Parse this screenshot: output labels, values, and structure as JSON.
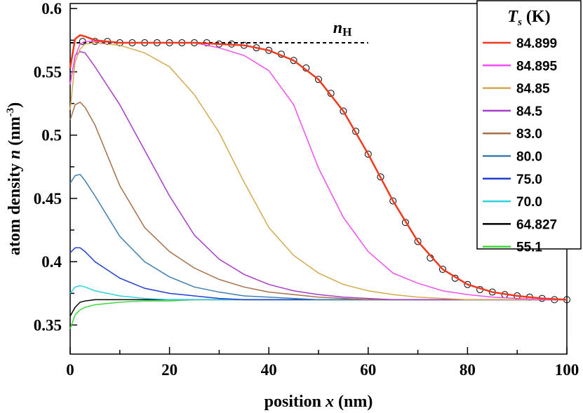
{
  "chart_data": {
    "type": "line",
    "xlabel": [
      "position ",
      "x",
      " (nm)"
    ],
    "ylabel": [
      "atom density ",
      "n",
      " (nm",
      "-3",
      ")"
    ],
    "legend_title": [
      "T",
      "s",
      " (K)"
    ],
    "legend": "upper right",
    "x": [
      0,
      1,
      2,
      3,
      5,
      10,
      15,
      20,
      25,
      30,
      35,
      40,
      45,
      50,
      55,
      60,
      65,
      70,
      75,
      80,
      85,
      90,
      95,
      100
    ],
    "xlim": [
      0,
      100
    ],
    "xticks": [
      0,
      20,
      40,
      60,
      80,
      100
    ],
    "xminorticks": [
      10,
      30,
      50,
      70,
      90
    ],
    "ylim": [
      0.327,
      0.604
    ],
    "yticks": [
      0.35,
      0.4,
      0.45,
      0.5,
      0.55,
      0.6
    ],
    "yminorticks": [
      0.375,
      0.425,
      0.475,
      0.525,
      0.575
    ],
    "series": [
      {
        "name": "84.899",
        "color": "#f03a1e",
        "values": [
          0.553,
          0.576,
          0.579,
          0.578,
          0.575,
          0.573,
          0.573,
          0.573,
          0.573,
          0.572,
          0.571,
          0.567,
          0.559,
          0.544,
          0.519,
          0.485,
          0.448,
          0.416,
          0.394,
          0.382,
          0.376,
          0.373,
          0.371,
          0.37
        ]
      },
      {
        "name": "84.895",
        "color": "#f050f0",
        "values": [
          0.54,
          0.562,
          0.572,
          0.574,
          0.574,
          0.573,
          0.573,
          0.573,
          0.573,
          0.569,
          0.563,
          0.551,
          0.524,
          0.474,
          0.435,
          0.408,
          0.391,
          0.383,
          0.377,
          0.374,
          0.372,
          0.371,
          0.37,
          0.37
        ]
      },
      {
        "name": "84.85",
        "color": "#d4aa50",
        "values": [
          0.52,
          0.558,
          0.568,
          0.572,
          0.573,
          0.571,
          0.565,
          0.554,
          0.532,
          0.502,
          0.463,
          0.427,
          0.405,
          0.391,
          0.382,
          0.377,
          0.374,
          0.372,
          0.371,
          0.37,
          0.37,
          0.37,
          0.37,
          0.37
        ]
      },
      {
        "name": "84.5",
        "color": "#a63ec8",
        "values": [
          0.54,
          0.563,
          0.566,
          0.565,
          0.554,
          0.524,
          0.488,
          0.452,
          0.421,
          0.402,
          0.39,
          0.382,
          0.377,
          0.374,
          0.372,
          0.371,
          0.37,
          0.37,
          0.37,
          0.37,
          0.37,
          0.37,
          0.37,
          0.37
        ]
      },
      {
        "name": "83.0",
        "color": "#a8704a",
        "values": [
          0.512,
          0.524,
          0.526,
          0.522,
          0.508,
          0.46,
          0.427,
          0.408,
          0.395,
          0.386,
          0.38,
          0.376,
          0.374,
          0.372,
          0.371,
          0.37,
          0.37,
          0.37,
          0.37,
          0.37,
          0.37,
          0.37,
          0.37,
          0.37
        ]
      },
      {
        "name": "80.0",
        "color": "#3f7fb0",
        "values": [
          0.462,
          0.468,
          0.469,
          0.464,
          0.452,
          0.42,
          0.4,
          0.388,
          0.38,
          0.376,
          0.373,
          0.372,
          0.371,
          0.37,
          0.37,
          0.37,
          0.37,
          0.37,
          0.37,
          0.37,
          0.37,
          0.37,
          0.37,
          0.37
        ]
      },
      {
        "name": "75.0",
        "color": "#1f3fd0",
        "values": [
          0.407,
          0.411,
          0.411,
          0.408,
          0.4,
          0.387,
          0.379,
          0.375,
          0.373,
          0.371,
          0.37,
          0.37,
          0.37,
          0.37,
          0.37,
          0.37,
          0.37,
          0.37,
          0.37,
          0.37,
          0.37,
          0.37,
          0.37,
          0.37
        ]
      },
      {
        "name": "70.0",
        "color": "#30d0e0",
        "values": [
          0.375,
          0.38,
          0.381,
          0.38,
          0.377,
          0.373,
          0.371,
          0.37,
          0.37,
          0.37,
          0.37,
          0.37,
          0.37,
          0.37,
          0.37,
          0.37,
          0.37,
          0.37,
          0.37,
          0.37,
          0.37,
          0.37,
          0.37,
          0.37
        ]
      },
      {
        "name": "64.827",
        "color": "#000000",
        "values": [
          0.357,
          0.364,
          0.368,
          0.369,
          0.37,
          0.37,
          0.37,
          0.37,
          0.37,
          0.37,
          0.37,
          0.37,
          0.37,
          0.37,
          0.37,
          0.37,
          0.37,
          0.37,
          0.37,
          0.37,
          0.37,
          0.37,
          0.37,
          0.37
        ]
      },
      {
        "name": "55.1",
        "color": "#40d840",
        "values": [
          0.347,
          0.358,
          0.362,
          0.364,
          0.366,
          0.368,
          0.369,
          0.369,
          0.37,
          0.37,
          0.37,
          0.37,
          0.37,
          0.37,
          0.37,
          0.37,
          0.37,
          0.37,
          0.37,
          0.37,
          0.37,
          0.37,
          0.37,
          0.37
        ]
      }
    ],
    "markers": {
      "color": "#000000",
      "x": [
        2.5,
        5,
        7.5,
        10,
        12.5,
        15,
        17.5,
        20,
        22.5,
        25,
        27.5,
        30,
        32.5,
        35,
        37.5,
        40,
        42.5,
        45,
        47.5,
        50,
        52.5,
        55,
        57.5,
        60,
        62.5,
        65,
        67.5,
        70,
        72.5,
        75,
        77.5,
        80,
        82.5,
        85,
        87.5,
        90,
        92.5,
        95,
        97.5,
        100
      ],
      "values": [
        0.574,
        0.574,
        0.574,
        0.573,
        0.573,
        0.573,
        0.573,
        0.573,
        0.573,
        0.573,
        0.573,
        0.572,
        0.572,
        0.571,
        0.569,
        0.567,
        0.564,
        0.559,
        0.553,
        0.544,
        0.533,
        0.519,
        0.503,
        0.485,
        0.467,
        0.448,
        0.431,
        0.416,
        0.403,
        0.394,
        0.387,
        0.382,
        0.378,
        0.376,
        0.374,
        0.373,
        0.372,
        0.371,
        0.37,
        0.37
      ]
    },
    "hline": {
      "y": 0.573,
      "x": [
        0,
        60
      ],
      "label": [
        "n",
        "H"
      ]
    }
  }
}
